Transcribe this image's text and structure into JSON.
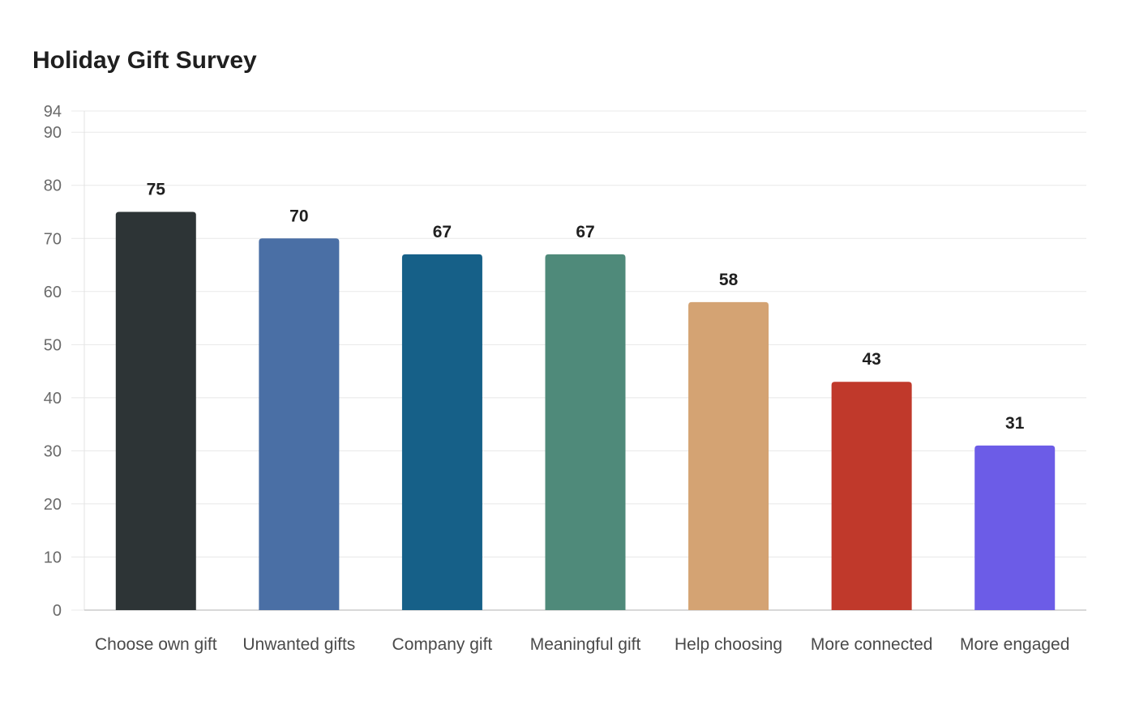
{
  "chart_data": {
    "type": "bar",
    "title": "Holiday Gift Survey",
    "xlabel": "",
    "ylabel": "",
    "categories": [
      "Choose own gift",
      "Unwanted gifts",
      "Company gift",
      "Meaningful gift",
      "Help choosing",
      "More connected",
      "More engaged"
    ],
    "values": [
      75,
      70,
      67,
      67,
      58,
      43,
      31
    ],
    "colors": [
      "#2d3436",
      "#4a6fa5",
      "#166088",
      "#4f8a7a",
      "#d4a373",
      "#c0392b",
      "#6c5ce7"
    ],
    "ylim": [
      0,
      94
    ],
    "yticks": [
      0,
      10,
      20,
      30,
      40,
      50,
      60,
      70,
      80,
      90,
      94
    ],
    "grid": true,
    "legend": "none"
  }
}
